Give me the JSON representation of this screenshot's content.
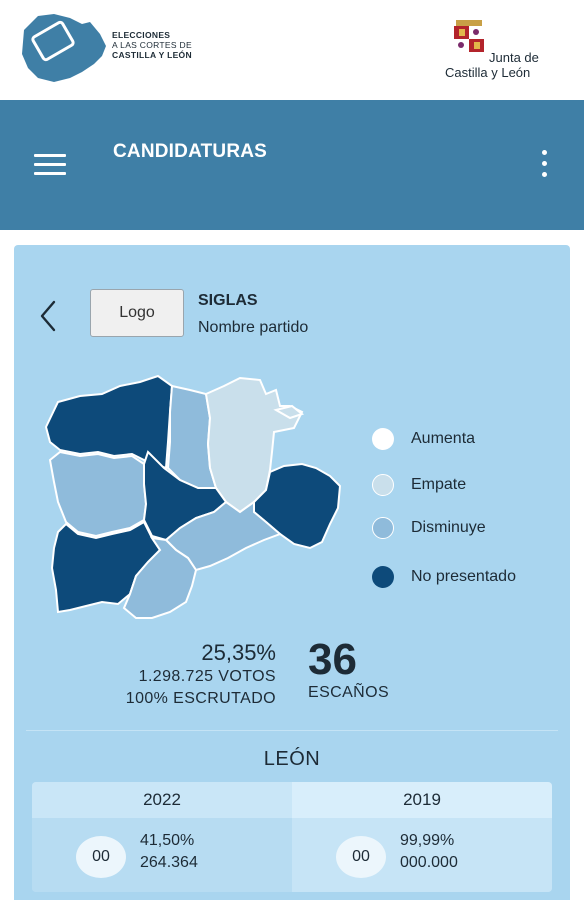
{
  "header": {
    "logo_mark": "13F",
    "brand_line1": "ELECCIONES",
    "brand_line2": "A LAS CORTES DE",
    "brand_line3": "CASTILLA Y LEÓN",
    "junta_line1": "Junta de",
    "junta_line2": "Castilla y León"
  },
  "appbar": {
    "title": "CANDIDATURAS",
    "menu_icon": "hamburger-menu-icon",
    "more_icon": "more-vertical-icon"
  },
  "party": {
    "logo_label": "Logo",
    "siglas": "SIGLAS",
    "nombre": "Nombre partido"
  },
  "legend": [
    {
      "label": "Aumenta",
      "color": "#ffffff"
    },
    {
      "label": "Empate",
      "color": "#c9dfeb"
    },
    {
      "label": "Disminuye",
      "color": "#8fbbdb"
    },
    {
      "label": "No presentado",
      "color": "#0d4a7a"
    }
  ],
  "map_colors": {
    "dark": "#0d4a7a",
    "mid": "#8fbbdb",
    "light": "#c9dfeb",
    "border": "#ffffff"
  },
  "summary": {
    "percentage": "25,35%",
    "votes": "1.298.725 VOTOS",
    "scrutinized": "100% ESCRUTADO",
    "seats": "36",
    "seats_label": "ESCAÑOS"
  },
  "province": {
    "name": "LEÓN",
    "years": [
      {
        "year": "2022",
        "seats": "00",
        "pct": "41,50%",
        "votes": "264.364"
      },
      {
        "year": "2019",
        "seats": "00",
        "pct": "99,99%",
        "votes": "000.000"
      }
    ]
  }
}
